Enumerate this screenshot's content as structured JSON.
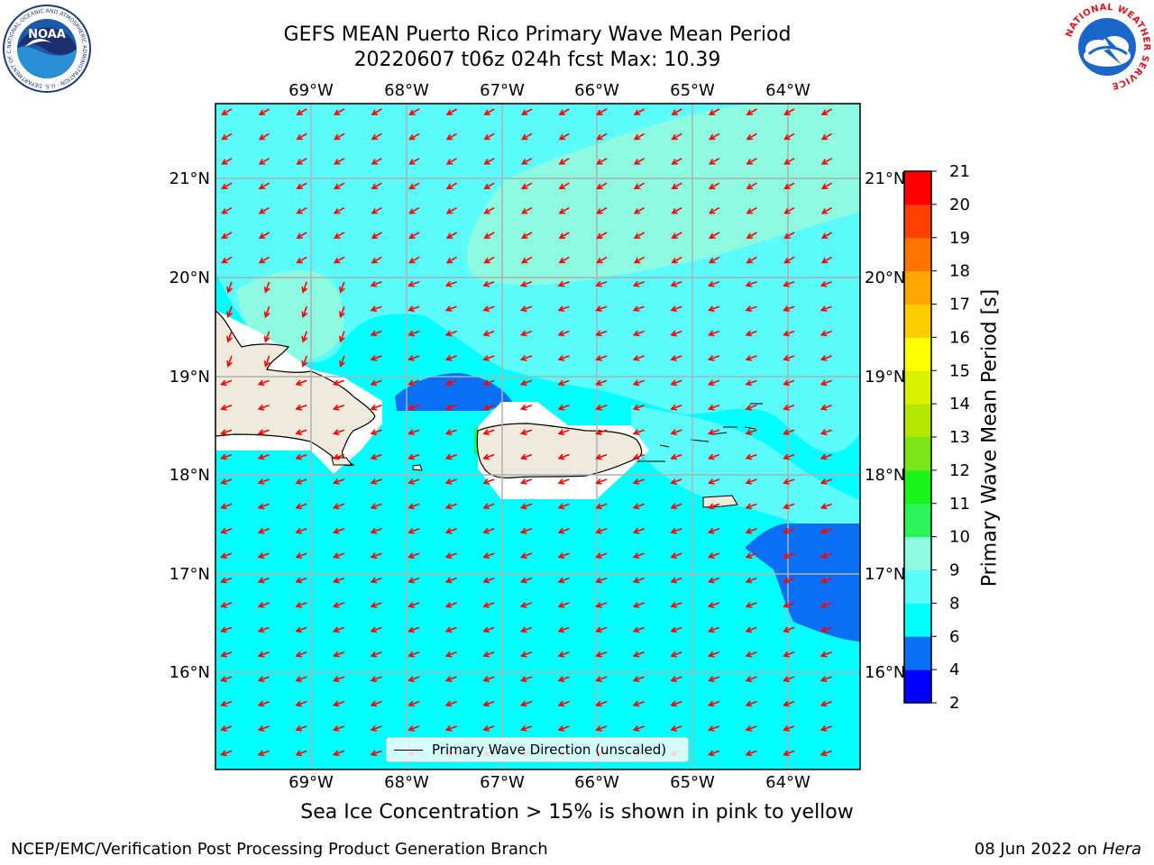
{
  "header": {
    "title_line1": "GEFS MEAN Puerto Rico Primary Wave Mean Period",
    "title_line2": "20220607 t06z 024h fcst   Max: 10.39"
  },
  "logos": {
    "noaa_text": "NOAA",
    "noaa_ring_text": "NATIONAL OCEANIC AND ATMOSPHERIC ADMINISTRATION · U.S. DEPARTMENT OF COMMERCE",
    "nws_ring_text": "NATIONAL WEATHER SERVICE"
  },
  "map": {
    "lon_labels": [
      "69°W",
      "68°W",
      "67°W",
      "66°W",
      "65°W",
      "64°W"
    ],
    "lat_labels": [
      "21°N",
      "20°N",
      "19°N",
      "18°N",
      "17°N",
      "16°N"
    ],
    "lon_values": [
      -69,
      -68,
      -67,
      -66,
      -65,
      -64
    ],
    "lat_values": [
      21,
      20,
      19,
      18,
      17,
      16
    ],
    "extent": {
      "lon_min": -70,
      "lon_max": -63.25,
      "lat_min": 15,
      "lat_max": 21.75
    },
    "legend_label": "Primary Wave Direction (unscaled)",
    "arrow_direction": "toward west-southwest",
    "arrow_color": "#ff0000",
    "land_color": "#efebdc"
  },
  "colorbar": {
    "title": "Primary Wave Mean Period [s]",
    "ticks": [
      "2",
      "4",
      "6",
      "8",
      "9",
      "10",
      "11",
      "12",
      "13",
      "14",
      "15",
      "16",
      "17",
      "18",
      "19",
      "20",
      "21"
    ],
    "colors": [
      "#0000ff",
      "#0a6ff5",
      "#00ffff",
      "#5cfcfc",
      "#8cfbe0",
      "#29f55a",
      "#1af51a",
      "#78e619",
      "#b3e600",
      "#d9f000",
      "#ffff00",
      "#ffcc00",
      "#ffa500",
      "#ff7300",
      "#ff4000",
      "#ff0000"
    ]
  },
  "caption": "Sea Ice Concentration > 15% is shown in pink to yellow",
  "footer": {
    "left": "NCEP/EMC/Verification Post Processing Product Generation Branch",
    "right_date": "08 Jun 2022 on",
    "right_host": "Hera"
  }
}
